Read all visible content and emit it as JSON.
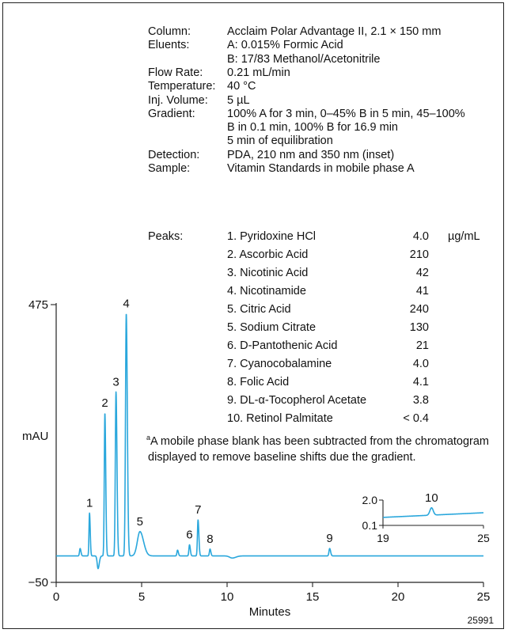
{
  "conditions": [
    {
      "key": "Column:",
      "lines": [
        "Acclaim Polar Advantage II, 2.1 × 150 mm"
      ]
    },
    {
      "key": "Eluents:",
      "lines": [
        "A: 0.015% Formic Acid",
        "B: 17/83 Methanol/Acetonitrile"
      ]
    },
    {
      "key": "Flow Rate:",
      "lines": [
        "0.21 mL/min"
      ]
    },
    {
      "key": "Temperature:",
      "lines": [
        "40 °C"
      ]
    },
    {
      "key": "Inj. Volume:",
      "lines": [
        "5 µL"
      ]
    },
    {
      "key": "Gradient:",
      "lines": [
        "100% A for 3 min, 0–45% B in 5 min, 45–100%",
        "B in 0.1 min, 100% B for 16.9 min",
        "5 min of equilibration"
      ]
    },
    {
      "key": "Detection:",
      "lines": [
        "PDA, 210 nm and 350 nm (inset)"
      ]
    },
    {
      "key": "Sample:",
      "lines": [
        "Vitamin Standards in mobile phase A"
      ]
    }
  ],
  "peaks_label": "Peaks:",
  "peaks_unit": "µg/mL",
  "peaks": [
    {
      "name": "1. Pyridoxine HCl",
      "value": "4.0"
    },
    {
      "name": "2. Ascorbic Acid",
      "value": "210"
    },
    {
      "name": "3. Nicotinic Acid",
      "value": "42"
    },
    {
      "name": "4. Nicotinamide",
      "value": "41"
    },
    {
      "name": "5. Citric Acid",
      "value": "240"
    },
    {
      "name": "5. Sodium Citrate",
      "value": "130"
    },
    {
      "name": "6. D-Pantothenic Acid",
      "value": "21"
    },
    {
      "name": "7. Cyanocobalamine",
      "value": "4.0"
    },
    {
      "name": "8.  Folic Acid",
      "value": "4.1"
    },
    {
      "name": "9.  DL-α-Tocopherol Acetate",
      "value": "3.8"
    },
    {
      "name": "10.  Retinol Palmitate",
      "value": "< 0.4"
    }
  ],
  "footnote": {
    "mark": "a",
    "line1": "A mobile phase blank has been subtracted from the chromatogram",
    "line2": "displayed to remove baseline shifts due the gradient."
  },
  "figure_id": "25991",
  "colors": {
    "trace": "#2aa7dc",
    "axis": "#222222",
    "frame": "#222222"
  },
  "chart_data": {
    "type": "line",
    "xlabel": "Minutes",
    "ylabel": "mAU",
    "xlim": [
      0,
      25
    ],
    "ylim": [
      -50,
      475
    ],
    "x_ticks": [
      0,
      5,
      10,
      15,
      20,
      25
    ],
    "y_ticks": [
      -50,
      475
    ],
    "grid": false,
    "series": [
      {
        "baseline": 0,
        "peaks": [
          {
            "label": "",
            "rt": 1.4,
            "height": 14,
            "width": 0.035
          },
          {
            "label": "1",
            "rt": 1.95,
            "height": 81,
            "width": 0.03
          },
          {
            "label": "",
            "rt": 2.45,
            "height": -24,
            "width": 0.05
          },
          {
            "label": "2",
            "rt": 2.85,
            "height": 270,
            "width": 0.035
          },
          {
            "label": "3",
            "rt": 3.5,
            "height": 310,
            "width": 0.04
          },
          {
            "label": "4",
            "rt": 4.1,
            "height": 458,
            "width": 0.045
          },
          {
            "label": "5",
            "rt": 4.9,
            "height": 46,
            "width": 0.15
          },
          {
            "label": "",
            "rt": 7.1,
            "height": 11,
            "width": 0.035
          },
          {
            "label": "6",
            "rt": 7.8,
            "height": 21,
            "width": 0.035
          },
          {
            "label": "7",
            "rt": 8.3,
            "height": 68,
            "width": 0.035
          },
          {
            "label": "8",
            "rt": 9.0,
            "height": 13,
            "width": 0.035
          },
          {
            "label": "",
            "rt": 10.3,
            "height": -4,
            "width": 0.15
          },
          {
            "label": "9",
            "rt": 16.0,
            "height": 14,
            "width": 0.04
          }
        ]
      }
    ],
    "inset": {
      "xlim": [
        19,
        25
      ],
      "ylim": [
        0.1,
        2.0
      ],
      "x_ticks": [
        19,
        25
      ],
      "y_ticks": [
        0.1,
        2.0
      ],
      "baseline_start": 0.7,
      "baseline_end": 1.05,
      "peaks": [
        {
          "label": "10",
          "rt": 21.9,
          "height": 0.55,
          "width": 0.1
        }
      ]
    }
  }
}
